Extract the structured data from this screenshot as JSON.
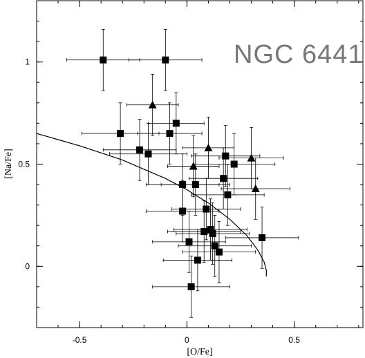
{
  "chart_data": {
    "type": "scatter",
    "title": "NGC 6441",
    "xlabel": "[O/Fe]",
    "ylabel": "[Na/Fe]",
    "xlim": [
      -0.7,
      0.82
    ],
    "ylim": [
      -0.3,
      1.3
    ],
    "xticks": [
      {
        "v": -0.5,
        "label": "-0.5"
      },
      {
        "v": 0,
        "label": "0"
      },
      {
        "v": 0.5,
        "label": "0.5"
      }
    ],
    "yticks": [
      {
        "v": 0,
        "label": "0"
      },
      {
        "v": 0.5,
        "label": "0.5"
      },
      {
        "v": 1,
        "label": "1"
      }
    ],
    "x_minor_step": 0.1,
    "y_minor_step": 0.1,
    "grid": false,
    "series": [
      {
        "marker": "square",
        "points": [
          {
            "x": -0.39,
            "y": 1.01,
            "xerr": 0.17,
            "yerr": 0.15
          },
          {
            "x": -0.1,
            "y": 1.01,
            "xerr": 0.17,
            "yerr": 0.15
          },
          {
            "x": -0.31,
            "y": 0.65,
            "xerr": 0.18,
            "yerr": 0.15
          },
          {
            "x": -0.08,
            "y": 0.65,
            "xerr": 0.15,
            "yerr": 0.15
          },
          {
            "x": -0.05,
            "y": 0.7,
            "xerr": 0.13,
            "yerr": 0.15
          },
          {
            "x": -0.22,
            "y": 0.57,
            "xerr": 0.17,
            "yerr": 0.15
          },
          {
            "x": -0.18,
            "y": 0.55,
            "xerr": 0.18,
            "yerr": 0.15
          },
          {
            "x": 0.18,
            "y": 0.54,
            "xerr": 0.16,
            "yerr": 0.15
          },
          {
            "x": 0.22,
            "y": 0.5,
            "xerr": 0.19,
            "yerr": 0.15
          },
          {
            "x": 0.17,
            "y": 0.43,
            "xerr": 0.16,
            "yerr": 0.15
          },
          {
            "x": -0.02,
            "y": 0.4,
            "xerr": 0.17,
            "yerr": 0.15
          },
          {
            "x": 0.04,
            "y": 0.4,
            "xerr": 0.16,
            "yerr": 0.15
          },
          {
            "x": 0.19,
            "y": 0.35,
            "xerr": 0.17,
            "yerr": 0.15
          },
          {
            "x": 0.09,
            "y": 0.28,
            "xerr": 0.16,
            "yerr": 0.15
          },
          {
            "x": -0.02,
            "y": 0.27,
            "xerr": 0.17,
            "yerr": 0.15
          },
          {
            "x": 0.35,
            "y": 0.14,
            "xerr": 0.17,
            "yerr": 0.15
          },
          {
            "x": 0.08,
            "y": 0.17,
            "xerr": 0.17,
            "yerr": 0.15
          },
          {
            "x": 0.11,
            "y": 0.18,
            "xerr": 0.17,
            "yerr": 0.15
          },
          {
            "x": 0.12,
            "y": 0.16,
            "xerr": 0.17,
            "yerr": 0.15
          },
          {
            "x": 0.01,
            "y": 0.12,
            "xerr": 0.17,
            "yerr": 0.15
          },
          {
            "x": 0.13,
            "y": 0.1,
            "xerr": 0.17,
            "yerr": 0.15
          },
          {
            "x": 0.15,
            "y": 0.07,
            "xerr": 0.17,
            "yerr": 0.15
          },
          {
            "x": 0.05,
            "y": 0.03,
            "xerr": 0.16,
            "yerr": 0.15
          },
          {
            "x": 0.02,
            "y": -0.1,
            "xerr": 0.18,
            "yerr": 0.15
          }
        ]
      },
      {
        "marker": "triangle",
        "points": [
          {
            "x": -0.16,
            "y": 0.79,
            "xerr": 0.12,
            "yerr": 0.15
          },
          {
            "x": 0.1,
            "y": 0.58,
            "xerr": 0.12,
            "yerr": 0.15
          },
          {
            "x": 0.03,
            "y": 0.49,
            "xerr": 0.12,
            "yerr": 0.15
          },
          {
            "x": 0.3,
            "y": 0.53,
            "xerr": 0.15,
            "yerr": 0.15
          },
          {
            "x": 0.32,
            "y": 0.38,
            "xerr": 0.16,
            "yerr": 0.15
          }
        ]
      }
    ],
    "curve": [
      {
        "x": -0.7,
        "y": 0.65
      },
      {
        "x": -0.6,
        "y": 0.62
      },
      {
        "x": -0.5,
        "y": 0.59
      },
      {
        "x": -0.4,
        "y": 0.555
      },
      {
        "x": -0.3,
        "y": 0.52
      },
      {
        "x": -0.2,
        "y": 0.475
      },
      {
        "x": -0.1,
        "y": 0.43
      },
      {
        "x": 0,
        "y": 0.375
      },
      {
        "x": 0.1,
        "y": 0.31
      },
      {
        "x": 0.2,
        "y": 0.23
      },
      {
        "x": 0.28,
        "y": 0.15
      },
      {
        "x": 0.33,
        "y": 0.08
      },
      {
        "x": 0.36,
        "y": 0.02
      },
      {
        "x": 0.37,
        "y": -0.02
      },
      {
        "x": 0.37,
        "y": -0.05
      }
    ]
  }
}
